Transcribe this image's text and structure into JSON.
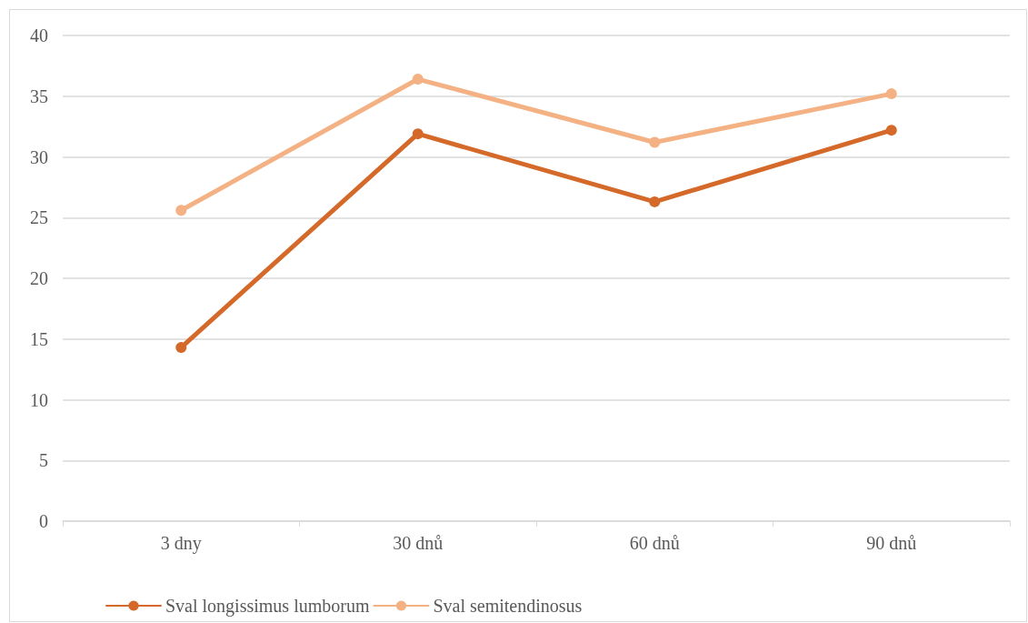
{
  "chart_data": {
    "type": "line",
    "categories": [
      "3 dny",
      "30 dnů",
      "60 dnů",
      "90 dnů"
    ],
    "series": [
      {
        "name": "Sval longissimus lumborum",
        "color": "#d4692a",
        "values": [
          14.3,
          31.9,
          26.3,
          32.2
        ]
      },
      {
        "name": "Sval semitendinosus",
        "color": "#f4b183",
        "values": [
          25.6,
          36.4,
          31.2,
          35.2
        ]
      }
    ],
    "ylim": [
      0,
      40
    ],
    "yticks": [
      0,
      5,
      10,
      15,
      20,
      25,
      30,
      35,
      40
    ],
    "grid": "y",
    "legend": "bottom",
    "marker": "circle",
    "line_style": "solid"
  }
}
